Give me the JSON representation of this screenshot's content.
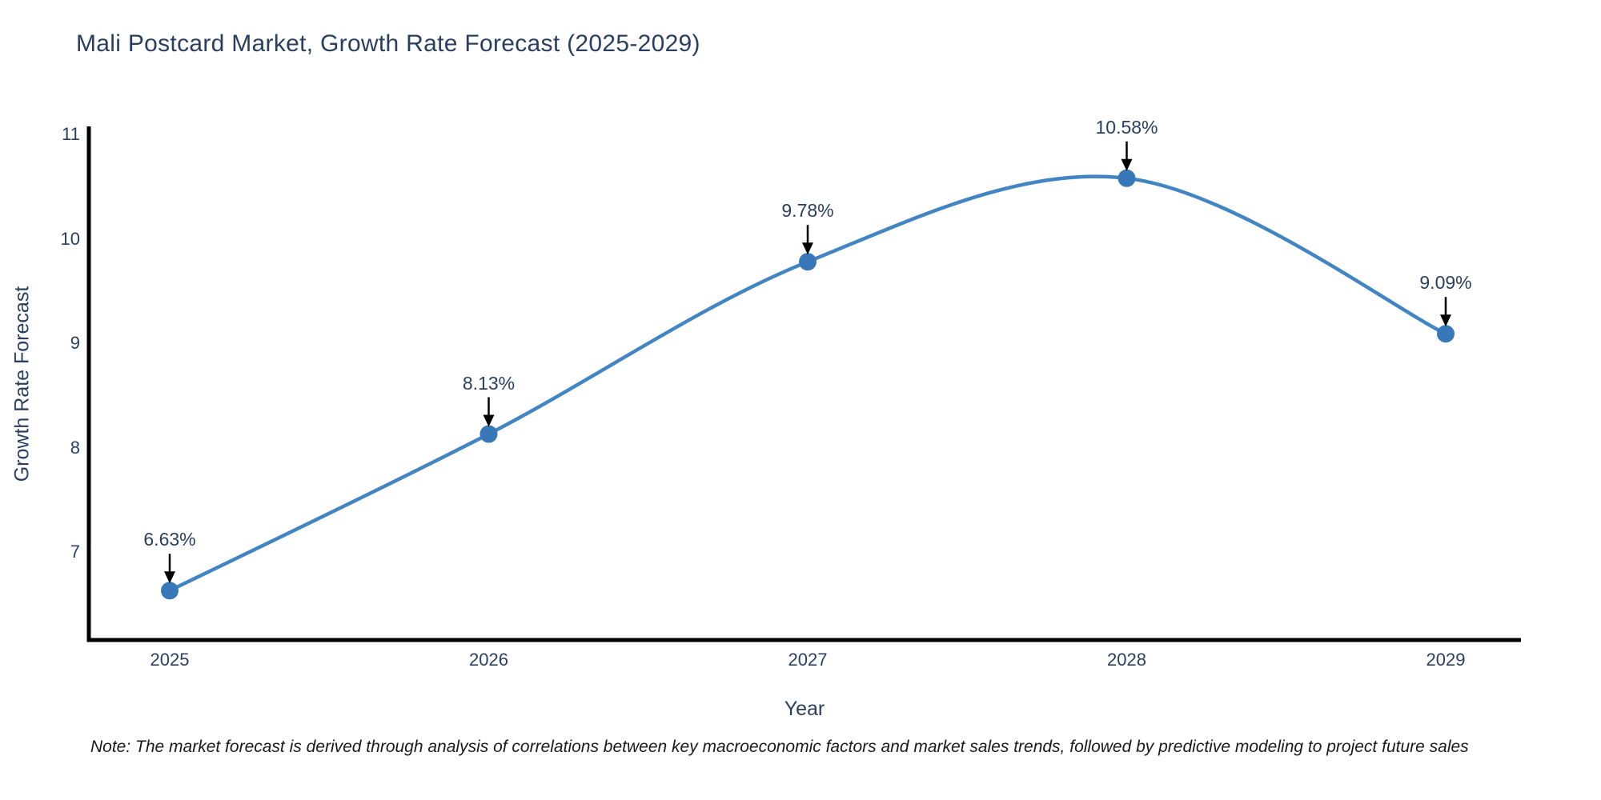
{
  "title": "Mali Postcard Market, Growth Rate Forecast (2025-2029)",
  "note": "Note: The market forecast is derived through analysis of correlations between key macroeconomic factors and market sales trends, followed by predictive modeling to project future sales",
  "chart_data": {
    "type": "line",
    "title": "Mali Postcard Market, Growth Rate Forecast (2025-2029)",
    "xlabel": "Year",
    "ylabel": "Growth Rate Forecast",
    "x": [
      2025,
      2026,
      2027,
      2028,
      2029
    ],
    "xticks": [
      "2025",
      "2026",
      "2027",
      "2028",
      "2029"
    ],
    "yticks": [
      7,
      8,
      9,
      10,
      11
    ],
    "ylim": [
      6.15,
      11.05
    ],
    "xlim": [
      2024.74,
      2029.24
    ],
    "grid": false,
    "legend_position": "none",
    "line_shape": "spline",
    "series": [
      {
        "name": "Growth Rate Forecast",
        "values": [
          6.63,
          8.13,
          9.78,
          10.58,
          9.09
        ],
        "point_labels": [
          "6.63%",
          "8.13%",
          "9.78%",
          "10.58%",
          "9.09%"
        ]
      }
    ],
    "colors": {
      "line": "#4285c2",
      "marker": "#3878b8",
      "arrow": "#000000",
      "axis": "#000000",
      "text": "#2a3f5f"
    }
  }
}
